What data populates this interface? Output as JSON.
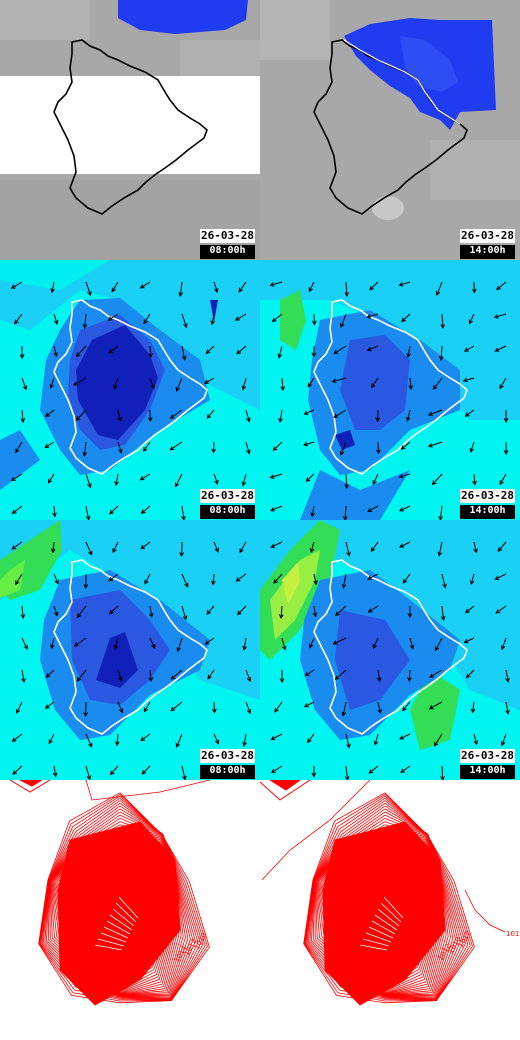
{
  "panels": [
    {
      "id": "cloud-am",
      "layer": "clouds",
      "date": "26-03-28",
      "time": "08:00h"
    },
    {
      "id": "cloud-pm",
      "layer": "clouds",
      "date": "26-03-28",
      "time": "14:00h"
    },
    {
      "id": "wind-low-am",
      "layer": "wind",
      "date": "26-03-28",
      "time": "08:00h"
    },
    {
      "id": "wind-low-pm",
      "layer": "wind",
      "date": "26-03-28",
      "time": "14:00h"
    },
    {
      "id": "wind-high-am",
      "layer": "wind",
      "date": "26-03-28",
      "time": "08:00h"
    },
    {
      "id": "wind-high-pm",
      "layer": "wind",
      "date": "26-03-28",
      "time": "14:00h"
    },
    {
      "id": "pressure-am",
      "layer": "pressure",
      "labels": [
        "1014",
        "1012",
        "1010",
        "1012"
      ]
    },
    {
      "id": "pressure-pm",
      "layer": "pressure",
      "labels": [
        "1012",
        "1010",
        "1012",
        "101"
      ]
    }
  ],
  "colors": {
    "cloud_gray": "#a9a9a9",
    "cloud_blue": "#1f3cf0",
    "cloud_white": "#ffffff",
    "wind_cyan": "#00f5f0",
    "wind_light": "#1ad0f5",
    "wind_mid": "#1a8cf0",
    "wind_blue": "#2a58e0",
    "wind_deep": "#1020b8",
    "wind_green": "#33dd55",
    "wind_yellow": "#c6f040",
    "pressure_red": "#ff0000"
  }
}
